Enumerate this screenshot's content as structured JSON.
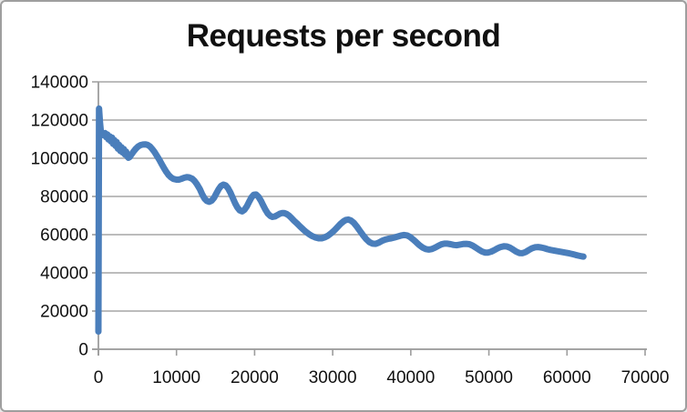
{
  "window": {
    "background": "#ffffff",
    "border_color": "#9e9e9e"
  },
  "chart_data": {
    "type": "line",
    "title": "Requests per second",
    "xlabel": "",
    "ylabel": "",
    "xlim": [
      0,
      70000
    ],
    "ylim": [
      0,
      140000
    ],
    "x_ticks": [
      0,
      10000,
      20000,
      30000,
      40000,
      50000,
      60000,
      70000
    ],
    "x_tick_labels": [
      "0",
      "10000",
      "20000",
      "30000",
      "40000",
      "50000",
      "60000",
      "70000"
    ],
    "y_ticks": [
      0,
      20000,
      40000,
      60000,
      80000,
      100000,
      120000,
      140000
    ],
    "y_tick_labels": [
      "0",
      "20000",
      "40000",
      "60000",
      "80000",
      "100000",
      "120000",
      "140000"
    ],
    "grid": "horizontal",
    "legend": "none",
    "line_color": "#4a7ebb",
    "line_width": 7,
    "axis_color": "#9d9d9d",
    "grid_color": "#a6a6a6",
    "series": [
      {
        "points": [
          [
            0,
            9300
          ],
          [
            80,
            126000
          ],
          [
            200,
            119000
          ],
          [
            300,
            114500
          ],
          [
            400,
            112800
          ],
          [
            550,
            113300
          ],
          [
            700,
            112000
          ],
          [
            850,
            113200
          ],
          [
            1000,
            111000
          ],
          [
            1150,
            112500
          ],
          [
            1300,
            109800
          ],
          [
            1450,
            111500
          ],
          [
            1600,
            108800
          ],
          [
            1750,
            110800
          ],
          [
            1900,
            107500
          ],
          [
            2050,
            109500
          ],
          [
            2200,
            106500
          ],
          [
            2350,
            108500
          ],
          [
            2500,
            105000
          ],
          [
            2650,
            107000
          ],
          [
            2800,
            103800
          ],
          [
            2950,
            105800
          ],
          [
            3100,
            103000
          ],
          [
            3250,
            104800
          ],
          [
            3400,
            102000
          ],
          [
            3550,
            103500
          ],
          [
            3700,
            101000
          ],
          [
            3850,
            100300
          ],
          [
            4000,
            100600
          ],
          [
            4200,
            101800
          ],
          [
            4500,
            103500
          ],
          [
            4800,
            105000
          ],
          [
            5100,
            106200
          ],
          [
            5400,
            106900
          ],
          [
            5700,
            107200
          ],
          [
            6000,
            107300
          ],
          [
            6300,
            107000
          ],
          [
            6600,
            106200
          ],
          [
            6900,
            104800
          ],
          [
            7200,
            103200
          ],
          [
            7500,
            101200
          ],
          [
            7800,
            99200
          ],
          [
            8100,
            97000
          ],
          [
            8400,
            94800
          ],
          [
            8700,
            92800
          ],
          [
            9000,
            91200
          ],
          [
            9300,
            90000
          ],
          [
            9600,
            89200
          ],
          [
            10000,
            88800
          ],
          [
            10300,
            88800
          ],
          [
            10600,
            89200
          ],
          [
            11000,
            89800
          ],
          [
            11300,
            90100
          ],
          [
            11600,
            90000
          ],
          [
            12000,
            89300
          ],
          [
            12300,
            88200
          ],
          [
            12600,
            86500
          ],
          [
            13000,
            83800
          ],
          [
            13300,
            81000
          ],
          [
            13600,
            78800
          ],
          [
            13900,
            77600
          ],
          [
            14200,
            77200
          ],
          [
            14500,
            77800
          ],
          [
            14800,
            79300
          ],
          [
            15100,
            81500
          ],
          [
            15400,
            83800
          ],
          [
            15700,
            85500
          ],
          [
            16000,
            86200
          ],
          [
            16300,
            85800
          ],
          [
            16600,
            84300
          ],
          [
            16900,
            82000
          ],
          [
            17200,
            79300
          ],
          [
            17500,
            76500
          ],
          [
            17800,
            74200
          ],
          [
            18100,
            72700
          ],
          [
            18400,
            72200
          ],
          [
            18700,
            73000
          ],
          [
            19000,
            74800
          ],
          [
            19300,
            77200
          ],
          [
            19600,
            79500
          ],
          [
            19900,
            80900
          ],
          [
            20200,
            81000
          ],
          [
            20500,
            79800
          ],
          [
            20800,
            77800
          ],
          [
            21100,
            75300
          ],
          [
            21400,
            73000
          ],
          [
            21700,
            71000
          ],
          [
            22000,
            69800
          ],
          [
            22300,
            69300
          ],
          [
            22600,
            69500
          ],
          [
            22900,
            70200
          ],
          [
            23200,
            70900
          ],
          [
            23500,
            71300
          ],
          [
            23800,
            71300
          ],
          [
            24100,
            70800
          ],
          [
            24400,
            70000
          ],
          [
            24700,
            68800
          ],
          [
            25000,
            67500
          ],
          [
            25400,
            66000
          ],
          [
            25800,
            64400
          ],
          [
            26200,
            62800
          ],
          [
            26600,
            61400
          ],
          [
            27000,
            60200
          ],
          [
            27400,
            59200
          ],
          [
            27800,
            58500
          ],
          [
            28200,
            58100
          ],
          [
            28600,
            58100
          ],
          [
            29000,
            58600
          ],
          [
            29400,
            59500
          ],
          [
            29800,
            60700
          ],
          [
            30200,
            62200
          ],
          [
            30600,
            63900
          ],
          [
            31000,
            65600
          ],
          [
            31400,
            67000
          ],
          [
            31700,
            67700
          ],
          [
            32000,
            67900
          ],
          [
            32300,
            67500
          ],
          [
            32700,
            66200
          ],
          [
            33100,
            64200
          ],
          [
            33500,
            61900
          ],
          [
            33900,
            59600
          ],
          [
            34300,
            57600
          ],
          [
            34700,
            56100
          ],
          [
            35100,
            55300
          ],
          [
            35500,
            55200
          ],
          [
            35900,
            55800
          ],
          [
            36300,
            56700
          ],
          [
            36700,
            57400
          ],
          [
            37100,
            57800
          ],
          [
            37500,
            58100
          ],
          [
            37900,
            58500
          ],
          [
            38300,
            59000
          ],
          [
            38700,
            59500
          ],
          [
            39100,
            59800
          ],
          [
            39500,
            59600
          ],
          [
            39900,
            58800
          ],
          [
            40300,
            57500
          ],
          [
            40700,
            56000
          ],
          [
            41100,
            54500
          ],
          [
            41500,
            53300
          ],
          [
            41900,
            52500
          ],
          [
            42300,
            52200
          ],
          [
            42700,
            52500
          ],
          [
            43100,
            53200
          ],
          [
            43500,
            54100
          ],
          [
            43900,
            54900
          ],
          [
            44300,
            55300
          ],
          [
            44700,
            55300
          ],
          [
            45100,
            55000
          ],
          [
            45500,
            54600
          ],
          [
            45900,
            54500
          ],
          [
            46300,
            54800
          ],
          [
            46700,
            55100
          ],
          [
            47100,
            55200
          ],
          [
            47500,
            55000
          ],
          [
            47900,
            54300
          ],
          [
            48300,
            53300
          ],
          [
            48700,
            52200
          ],
          [
            49100,
            51200
          ],
          [
            49500,
            50600
          ],
          [
            49900,
            50600
          ],
          [
            50300,
            51100
          ],
          [
            50700,
            51900
          ],
          [
            51100,
            52800
          ],
          [
            51500,
            53500
          ],
          [
            51900,
            53900
          ],
          [
            52300,
            53800
          ],
          [
            52700,
            53200
          ],
          [
            53100,
            52200
          ],
          [
            53500,
            51100
          ],
          [
            53900,
            50400
          ],
          [
            54300,
            50300
          ],
          [
            54700,
            50900
          ],
          [
            55100,
            51900
          ],
          [
            55500,
            52800
          ],
          [
            55900,
            53400
          ],
          [
            56300,
            53500
          ],
          [
            56700,
            53300
          ],
          [
            57100,
            52900
          ],
          [
            57500,
            52400
          ],
          [
            57900,
            52000
          ],
          [
            58300,
            51700
          ],
          [
            58700,
            51400
          ],
          [
            59100,
            51100
          ],
          [
            59500,
            50800
          ],
          [
            59900,
            50500
          ],
          [
            60300,
            50200
          ],
          [
            60700,
            49800
          ],
          [
            61100,
            49400
          ],
          [
            61500,
            49000
          ],
          [
            61900,
            48600
          ],
          [
            62100,
            48500
          ]
        ]
      }
    ]
  }
}
